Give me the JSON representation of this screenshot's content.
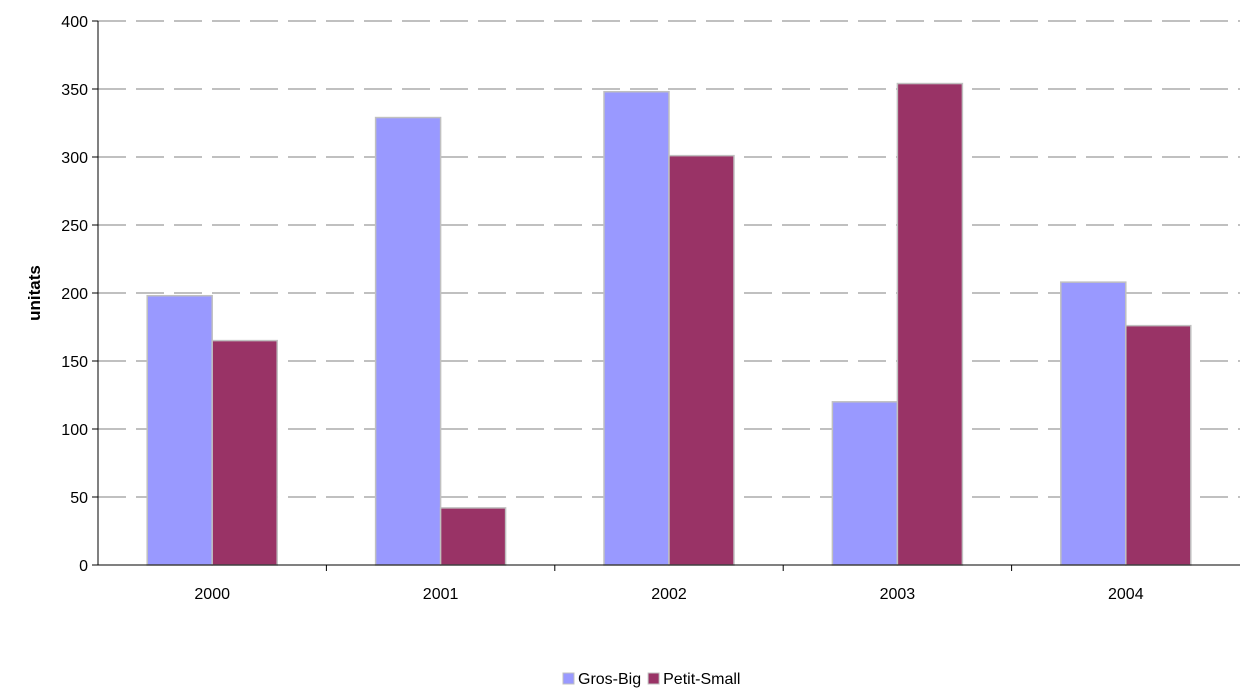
{
  "chart_data": {
    "type": "bar",
    "categories": [
      "2000",
      "2001",
      "2002",
      "2003",
      "2004"
    ],
    "series": [
      {
        "name": "Gros-Big",
        "values": [
          198,
          329,
          348,
          120,
          208
        ],
        "color": "#9999ff"
      },
      {
        "name": "Petit-Small",
        "values": [
          165,
          42,
          301,
          354,
          176
        ],
        "color": "#993366"
      }
    ],
    "title": "",
    "xlabel": "",
    "ylabel": "unitats",
    "ylim": [
      0,
      400
    ],
    "yticks": [
      0,
      50,
      100,
      150,
      200,
      250,
      300,
      350,
      400
    ],
    "grid": true,
    "legend_position": "bottom"
  }
}
